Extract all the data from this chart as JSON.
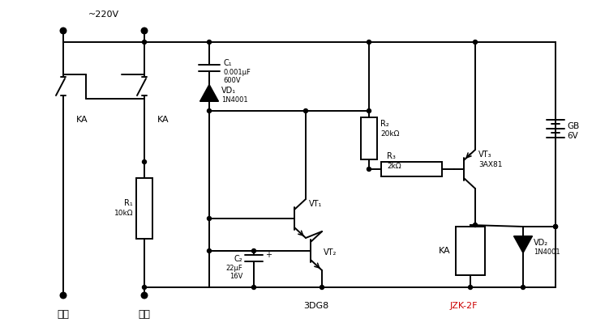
{
  "bg_color": "#ffffff",
  "line_color": "#000000",
  "red_color": "#cc0000",
  "fig_width": 7.3,
  "fig_height": 4.09,
  "title_220v": "~220V",
  "label_phase": "相线",
  "label_neutral": "零线",
  "label_KA1": "KA",
  "label_KA2": "KA",
  "label_R1": "R₁",
  "label_R1v": "10kΩ",
  "label_C1": "C₁",
  "label_VD1": "VD₁",
  "label_VD1n": "1N4001",
  "label_R2": "R₂",
  "label_R2v": "20kΩ",
  "label_R3": "R₃",
  "label_R3v": "2kΩ",
  "label_VT1": "VT₁",
  "label_VT2": "VT₂",
  "label_VT3": "VT₃",
  "label_VT3n": "3AX81",
  "label_C2": "C₂",
  "label_KA3": "KA",
  "label_VD2": "VD₂",
  "label_VD2n": "1N4001",
  "label_GB": "GB",
  "label_GB_v": "6V",
  "label_3DG8": "3DG8",
  "label_JZK": "JZK-2F",
  "label_plus": "+"
}
